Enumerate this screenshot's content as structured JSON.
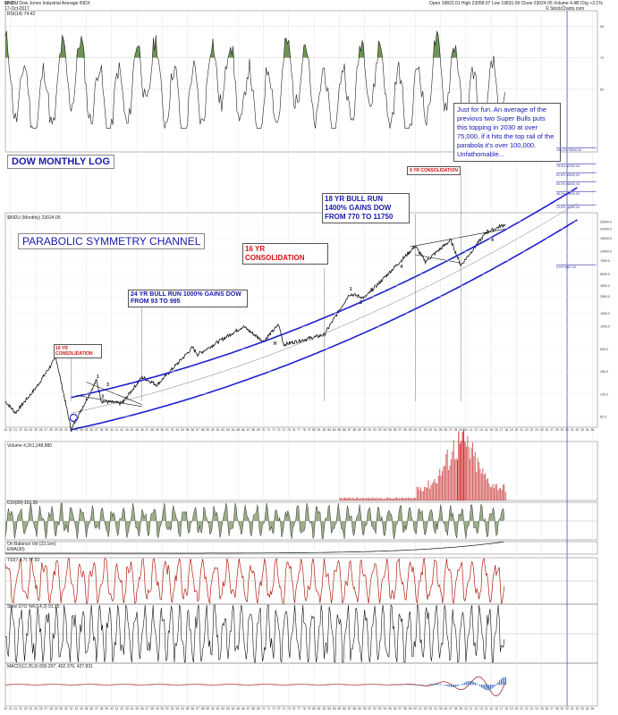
{
  "header": {
    "symbol": "$INDU",
    "name": "Dow Jones Industrial Average",
    "exchange": "INDX",
    "date": "17-Oct-2017",
    "open": "Open 19822.01",
    "high": "High 23058.07",
    "low": "Low 19831.09",
    "close": "Close 23024.05",
    "volume": "Volume 4.4B",
    "chg": "Chg +3.1%",
    "brand": "© StockCharts.com"
  },
  "panels": {
    "rsi_label": "RSI(14) 74.42",
    "price_label": "$INDU (Monthly) 23024.05",
    "volume_label": "Volume 4,261,248,880",
    "cci_label": "CCI(20) 151.35",
    "obv_label": "On Balance Vol (23.1en)",
    "obv_sub": "EMA(30)",
    "tsi_label": "TSI(7,4,7) 77.93",
    "sto_label": "Slow STO %K(14,3) 91.75",
    "macd_label": "MACD(12,26,9) 830.207, 402.376, 427.831"
  },
  "annotations": {
    "dow_monthly_log": "DOW MONTHLY LOG",
    "parabolic": "PARABOLIC SYMMETRY CHANNEL",
    "cons10": "10 YR CONSOLIDATION",
    "bull24": "24 YR BULL RUN 1000% GAINS DOW FROM 93 TO 995",
    "cons16": "16 YR CONSOLIDATION",
    "bull18": "18 YR BULL RUN 1400% GAINS DOW FROM 770 TO 11750",
    "cons9": "9 YR CONSOLIDATION",
    "fun": "Just for fun.  An average of the previous two Super Bulls puts this topping in 2030 at over 75,000, if it hits the top rail of the parabola it's over 100,000. Unfathomable..."
  },
  "fib_labels": [
    "100.0% 76500.00",
    "78.6% 50000.00",
    "61.8% 35000.00",
    "50.0% 28000.00",
    "38.2% 23000.00",
    "23.6% 18200.00",
    "0.0% 9887.00"
  ],
  "chart_data": {
    "type": "line",
    "yscale": "log",
    "x_ticks": [
      "19",
      "20",
      "21",
      "22",
      "23",
      "24",
      "25",
      "26",
      "27",
      "28",
      "29",
      "30",
      "31",
      "32",
      "33",
      "34",
      "35",
      "36",
      "37",
      "38",
      "39",
      "40",
      "41",
      "42",
      "43",
      "44",
      "45",
      "46",
      "47",
      "48",
      "49",
      "50",
      "51",
      "52",
      "53",
      "54",
      "55",
      "56",
      "57",
      "58",
      "59",
      "60",
      "61",
      "62",
      "63",
      "64",
      "65",
      "66",
      "67",
      "68",
      "69",
      "70",
      "71",
      "72",
      "73",
      "74",
      "75",
      "76",
      "77",
      "78",
      "79",
      "80",
      "81",
      "82",
      "83",
      "84",
      "85",
      "86",
      "87",
      "88",
      "89",
      "90",
      "91",
      "92",
      "93",
      "94",
      "95",
      "96",
      "97",
      "98",
      "99",
      "00",
      "01",
      "02",
      "03",
      "04",
      "05",
      "06",
      "07",
      "08",
      "09",
      "10",
      "11",
      "12",
      "13",
      "14",
      "15",
      "16",
      "17",
      "18",
      "19",
      "20",
      "21",
      "22",
      "23",
      "24",
      "25",
      "26",
      "27",
      "28",
      "29",
      "30",
      "31",
      "32",
      "33",
      "34",
      "35"
    ],
    "y_ticks": [
      "25000.0",
      "20000.0",
      "15000.0",
      "10000.0",
      "7500.0",
      "5000.0",
      "3500.0",
      "2500.0",
      "1500.0",
      "1000.0",
      "500.0",
      "250.0",
      "125.0",
      "62.5"
    ],
    "rsi_ticks": [
      "90",
      "70",
      "50"
    ],
    "series": [
      {
        "name": "$INDU",
        "years": [
          1919,
          1921,
          1925,
          1929,
          1932,
          1937,
          1938,
          1942,
          1946,
          1949,
          1956,
          1957,
          1966,
          1970,
          1973,
          1974,
          1982,
          1987,
          1990,
          2000,
          2002,
          2007,
          2009,
          2014,
          2017.8
        ],
        "values": [
          100,
          70,
          150,
          380,
          42,
          190,
          100,
          93,
          210,
          165,
          520,
          420,
          995,
          630,
          1050,
          570,
          770,
          2700,
          2400,
          11750,
          7300,
          14100,
          6500,
          17800,
          23024
        ]
      }
    ],
    "wave_labels": [
      "1",
      "2",
      "3",
      "4",
      "H",
      "1",
      "2",
      "3",
      "4",
      "3",
      "4"
    ]
  }
}
